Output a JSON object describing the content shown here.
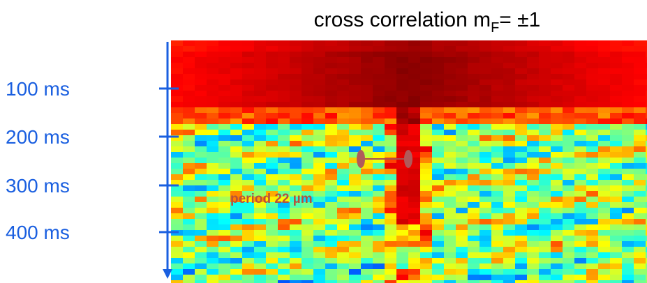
{
  "title": {
    "text": "cross correlation m",
    "subscript": "F",
    "suffix": "= ±1"
  },
  "time_labels": [
    "100 ms",
    "200 ms",
    "300 ms",
    "400 ms"
  ],
  "annotation": "period 22 µm"
}
